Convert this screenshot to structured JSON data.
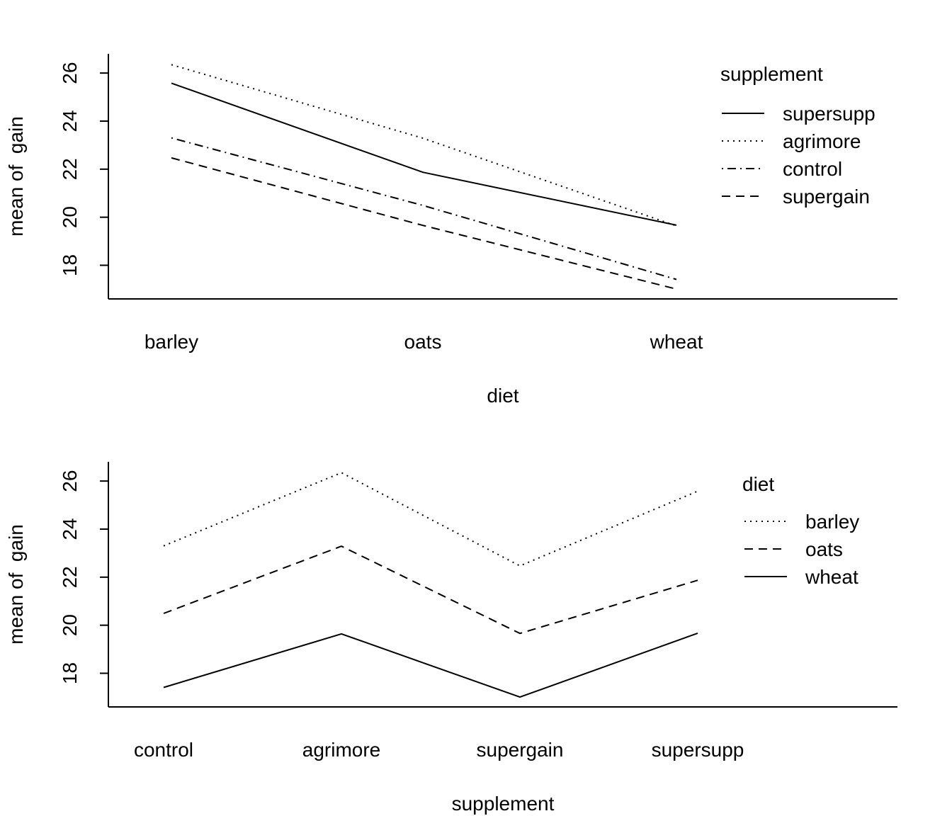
{
  "chart_data": [
    {
      "type": "line",
      "xlabel": "diet",
      "ylabel": "mean of  gain",
      "categories": [
        "barley",
        "oats",
        "wheat"
      ],
      "yticks": [
        18,
        20,
        22,
        24,
        26
      ],
      "ylim": [
        16.6,
        26.8
      ],
      "legend": {
        "title": "supplement",
        "position": "top-right"
      },
      "series": [
        {
          "name": "supersupp",
          "values": [
            25.58,
            21.87,
            19.67
          ],
          "line_style": "solid"
        },
        {
          "name": "agrimore",
          "values": [
            26.35,
            23.29,
            19.64
          ],
          "line_style": "dotted"
        },
        {
          "name": "control",
          "values": [
            23.3,
            20.49,
            17.41
          ],
          "line_style": "dotdash"
        },
        {
          "name": "supergain",
          "values": [
            22.47,
            19.66,
            17.01
          ],
          "line_style": "dashed"
        }
      ]
    },
    {
      "type": "line",
      "xlabel": "supplement",
      "ylabel": "mean of  gain",
      "categories": [
        "control",
        "agrimore",
        "supergain",
        "supersupp"
      ],
      "yticks": [
        18,
        20,
        22,
        24,
        26
      ],
      "ylim": [
        16.6,
        26.8
      ],
      "legend": {
        "title": "diet",
        "position": "top-right"
      },
      "series": [
        {
          "name": "barley",
          "values": [
            23.3,
            26.35,
            22.47,
            25.58
          ],
          "line_style": "dotted"
        },
        {
          "name": "oats",
          "values": [
            20.49,
            23.29,
            19.66,
            21.87
          ],
          "line_style": "dashed"
        },
        {
          "name": "wheat",
          "values": [
            17.41,
            19.64,
            17.01,
            19.67
          ],
          "line_style": "solid"
        }
      ]
    }
  ]
}
